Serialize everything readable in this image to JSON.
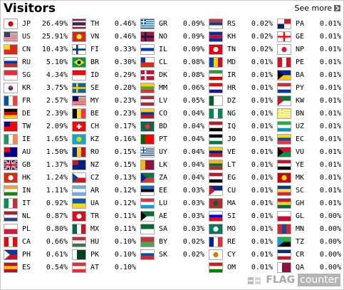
{
  "header": {
    "title": "Visitors",
    "see_more": "See more"
  },
  "footer": {
    "brand_flag": "FLAG",
    "brand_counter": "counter"
  },
  "columns": [
    [
      {
        "code": "JP",
        "pct": "26.49%",
        "colors": [
          "#ffffff",
          "#d00000"
        ],
        "style": "circle"
      },
      {
        "code": "US",
        "pct": "25.91%",
        "colors": [
          "#b22234",
          "#ffffff",
          "#3c3b6e"
        ],
        "style": "us"
      },
      {
        "code": "CN",
        "pct": "10.43%",
        "colors": [
          "#de2910",
          "#ffde00"
        ],
        "style": "canton"
      },
      {
        "code": "RU",
        "pct": "5.10%",
        "colors": [
          "#ffffff",
          "#0039a6",
          "#d52b1e"
        ],
        "style": "h3"
      },
      {
        "code": "SG",
        "pct": "4.34%",
        "colors": [
          "#ed2939",
          "#ffffff"
        ],
        "style": "h2"
      },
      {
        "code": "KR",
        "pct": "3.75%",
        "colors": [
          "#ffffff",
          "#cd2e3a",
          "#0047a0"
        ],
        "style": "circle2"
      },
      {
        "code": "FR",
        "pct": "2.57%",
        "colors": [
          "#0055a4",
          "#ffffff",
          "#ef4135"
        ],
        "style": "v3"
      },
      {
        "code": "DE",
        "pct": "2.39%",
        "colors": [
          "#000000",
          "#dd0000",
          "#ffce00"
        ],
        "style": "h3"
      },
      {
        "code": "TW",
        "pct": "2.09%",
        "colors": [
          "#fe0000",
          "#000095"
        ],
        "style": "canton"
      },
      {
        "code": "IE",
        "pct": "1.65%",
        "colors": [
          "#169b62",
          "#ffffff",
          "#ff883e"
        ],
        "style": "v3"
      },
      {
        "code": "AU",
        "pct": "1.50%",
        "colors": [
          "#00008b",
          "#ff0000"
        ],
        "style": "canton"
      },
      {
        "code": "GB",
        "pct": "1.37%",
        "colors": [
          "#012169",
          "#ffffff",
          "#c8102e"
        ],
        "style": "cross"
      },
      {
        "code": "HK",
        "pct": "1.24%",
        "colors": [
          "#de2910",
          "#ffffff"
        ],
        "style": "circle"
      },
      {
        "code": "IN",
        "pct": "1.11%",
        "colors": [
          "#ff9933",
          "#ffffff",
          "#138808"
        ],
        "style": "h3"
      },
      {
        "code": "IT",
        "pct": "0.92%",
        "colors": [
          "#009246",
          "#ffffff",
          "#ce2b37"
        ],
        "style": "v3"
      },
      {
        "code": "NL",
        "pct": "0.87%",
        "colors": [
          "#ae1c28",
          "#ffffff",
          "#21468b"
        ],
        "style": "h3"
      },
      {
        "code": "PL",
        "pct": "0.80%",
        "colors": [
          "#ffffff",
          "#dc143c"
        ],
        "style": "h2"
      },
      {
        "code": "CA",
        "pct": "0.66%",
        "colors": [
          "#ff0000",
          "#ffffff",
          "#ff0000"
        ],
        "style": "v3"
      },
      {
        "code": "PH",
        "pct": "0.61%",
        "colors": [
          "#0038a8",
          "#ce1126",
          "#ffffff"
        ],
        "style": "tri"
      },
      {
        "code": "ES",
        "pct": "0.54%",
        "colors": [
          "#c60b1e",
          "#ffc400",
          "#c60b1e"
        ],
        "style": "h3"
      }
    ],
    [
      {
        "code": "TH",
        "pct": "0.46%",
        "colors": [
          "#a51931",
          "#f4f5f8",
          "#2d2a4a",
          "#f4f5f8",
          "#a51931"
        ],
        "style": "h5"
      },
      {
        "code": "VN",
        "pct": "0.46%",
        "colors": [
          "#da251d",
          "#ffff00"
        ],
        "style": "circle"
      },
      {
        "code": "FI",
        "pct": "0.33%",
        "colors": [
          "#ffffff",
          "#003580"
        ],
        "style": "nordic"
      },
      {
        "code": "BR",
        "pct": "0.30%",
        "colors": [
          "#009c3b",
          "#ffdf00",
          "#002776"
        ],
        "style": "diamond"
      },
      {
        "code": "ID",
        "pct": "0.29%",
        "colors": [
          "#ff0000",
          "#ffffff"
        ],
        "style": "h2"
      },
      {
        "code": "SE",
        "pct": "0.28%",
        "colors": [
          "#006aa7",
          "#fecc00"
        ],
        "style": "nordic"
      },
      {
        "code": "MY",
        "pct": "0.23%",
        "colors": [
          "#cc0001",
          "#ffffff",
          "#010066"
        ],
        "style": "us"
      },
      {
        "code": "BE",
        "pct": "0.23%",
        "colors": [
          "#000000",
          "#fdda24",
          "#ef3340"
        ],
        "style": "v3"
      },
      {
        "code": "CH",
        "pct": "0.17%",
        "colors": [
          "#ff0000",
          "#ffffff"
        ],
        "style": "plus"
      },
      {
        "code": "KZ",
        "pct": "0.16%",
        "colors": [
          "#00afca",
          "#fec50c"
        ],
        "style": "circle"
      },
      {
        "code": "RO",
        "pct": "0.15%",
        "colors": [
          "#002b7f",
          "#fcd116",
          "#ce1126"
        ],
        "style": "v3"
      },
      {
        "code": "NZ",
        "pct": "0.15%",
        "colors": [
          "#00247d",
          "#cc142b"
        ],
        "style": "canton"
      },
      {
        "code": "CZ",
        "pct": "0.13%",
        "colors": [
          "#ffffff",
          "#d7141a",
          "#11457e"
        ],
        "style": "tri"
      },
      {
        "code": "AR",
        "pct": "0.12%",
        "colors": [
          "#74acdf",
          "#ffffff",
          "#74acdf"
        ],
        "style": "h3"
      },
      {
        "code": "UA",
        "pct": "0.12%",
        "colors": [
          "#0057b7",
          "#ffd700"
        ],
        "style": "h2"
      },
      {
        "code": "TR",
        "pct": "0.11%",
        "colors": [
          "#e30a17",
          "#ffffff"
        ],
        "style": "circle"
      },
      {
        "code": "MX",
        "pct": "0.11%",
        "colors": [
          "#006847",
          "#ffffff",
          "#ce1126"
        ],
        "style": "v3"
      },
      {
        "code": "HU",
        "pct": "0.10%",
        "colors": [
          "#ce2939",
          "#ffffff",
          "#477050"
        ],
        "style": "h3"
      },
      {
        "code": "PK",
        "pct": "0.10%",
        "colors": [
          "#ffffff",
          "#01411c"
        ],
        "style": "vsplit"
      },
      {
        "code": "AT",
        "pct": "0.10%",
        "colors": [
          "#ed2939",
          "#ffffff",
          "#ed2939"
        ],
        "style": "h3"
      }
    ],
    [
      {
        "code": "GR",
        "pct": "0.09%",
        "colors": [
          "#0d5eaf",
          "#ffffff"
        ],
        "style": "stripes"
      },
      {
        "code": "NO",
        "pct": "0.09%",
        "colors": [
          "#ba0c2f",
          "#00205b"
        ],
        "style": "nordic"
      },
      {
        "code": "IL",
        "pct": "0.09%",
        "colors": [
          "#ffffff",
          "#0038b8",
          "#ffffff"
        ],
        "style": "h3"
      },
      {
        "code": "CL",
        "pct": "0.08%",
        "colors": [
          "#ffffff",
          "#d52b1e",
          "#0039a6"
        ],
        "style": "chile"
      },
      {
        "code": "DK",
        "pct": "0.08%",
        "colors": [
          "#c8102e",
          "#ffffff"
        ],
        "style": "nordic"
      },
      {
        "code": "MM",
        "pct": "0.06%",
        "colors": [
          "#fecb00",
          "#34b233",
          "#ea2839"
        ],
        "style": "h3"
      },
      {
        "code": "LV",
        "pct": "0.05%",
        "colors": [
          "#9e3039",
          "#ffffff",
          "#9e3039"
        ],
        "style": "h3"
      },
      {
        "code": "CO",
        "pct": "0.04%",
        "colors": [
          "#fcd116",
          "#003893",
          "#ce1126"
        ],
        "style": "h3"
      },
      {
        "code": "BD",
        "pct": "0.04%",
        "colors": [
          "#006a4e",
          "#f42a41"
        ],
        "style": "circle"
      },
      {
        "code": "PT",
        "pct": "0.04%",
        "colors": [
          "#006600",
          "#ff0000"
        ],
        "style": "vsplit"
      },
      {
        "code": "UY",
        "pct": "0.04%",
        "colors": [
          "#ffffff",
          "#0038a8"
        ],
        "style": "stripes"
      },
      {
        "code": "LK",
        "pct": "0.04%",
        "colors": [
          "#ffb700",
          "#8d153a"
        ],
        "style": "vsplit"
      },
      {
        "code": "ZA",
        "pct": "0.04%",
        "colors": [
          "#007a4d",
          "#de3831",
          "#002395"
        ],
        "style": "tri"
      },
      {
        "code": "EE",
        "pct": "0.03%",
        "colors": [
          "#0072ce",
          "#000000",
          "#ffffff"
        ],
        "style": "h3"
      },
      {
        "code": "LU",
        "pct": "0.03%",
        "colors": [
          "#ed2939",
          "#ffffff",
          "#00a1de"
        ],
        "style": "h3"
      },
      {
        "code": "AE",
        "pct": "0.03%",
        "colors": [
          "#00732f",
          "#ffffff",
          "#000000"
        ],
        "style": "tri"
      },
      {
        "code": "SA",
        "pct": "0.03%",
        "colors": [
          "#006c35",
          "#ffffff"
        ],
        "style": "h2"
      },
      {
        "code": "BY",
        "pct": "0.02%",
        "colors": [
          "#c8313e",
          "#4aa657"
        ],
        "style": "h2"
      },
      {
        "code": "SK",
        "pct": "0.02%",
        "colors": [
          "#ffffff",
          "#0b4ea2",
          "#ee1c25"
        ],
        "style": "h3"
      }
    ],
    [
      {
        "code": "RS",
        "pct": "0.02%",
        "colors": [
          "#c6363c",
          "#0c4076",
          "#ffffff"
        ],
        "style": "h3"
      },
      {
        "code": "KH",
        "pct": "0.02%",
        "colors": [
          "#032ea1",
          "#e00025",
          "#032ea1"
        ],
        "style": "h3"
      },
      {
        "code": "TN",
        "pct": "0.02%",
        "colors": [
          "#e70013",
          "#ffffff"
        ],
        "style": "circle"
      },
      {
        "code": "MD",
        "pct": "0.01%",
        "colors": [
          "#0046ae",
          "#ffd200",
          "#cc092f"
        ],
        "style": "v3"
      },
      {
        "code": "IR",
        "pct": "0.01%",
        "colors": [
          "#239f40",
          "#ffffff",
          "#da0000"
        ],
        "style": "h3"
      },
      {
        "code": "HR",
        "pct": "0.01%",
        "colors": [
          "#ff0000",
          "#ffffff",
          "#171796"
        ],
        "style": "h3"
      },
      {
        "code": "DZ",
        "pct": "0.01%",
        "colors": [
          "#006233",
          "#ffffff"
        ],
        "style": "vsplit"
      },
      {
        "code": "NG",
        "pct": "0.01%",
        "colors": [
          "#008751",
          "#ffffff",
          "#008751"
        ],
        "style": "v3"
      },
      {
        "code": "IQ",
        "pct": "0.01%",
        "colors": [
          "#ce1126",
          "#ffffff",
          "#000000"
        ],
        "style": "h3"
      },
      {
        "code": "JO",
        "pct": "0.01%",
        "colors": [
          "#000000",
          "#ffffff",
          "#007a3d"
        ],
        "style": "h3"
      },
      {
        "code": "VE",
        "pct": "0.01%",
        "colors": [
          "#ffcc00",
          "#00247d",
          "#cf142b"
        ],
        "style": "h3"
      },
      {
        "code": "LT",
        "pct": "0.01%",
        "colors": [
          "#fdb913",
          "#006a44",
          "#c1272d"
        ],
        "style": "h3"
      },
      {
        "code": "EG",
        "pct": "0.01%",
        "colors": [
          "#ce1126",
          "#ffffff",
          "#000000"
        ],
        "style": "h3"
      },
      {
        "code": "CU",
        "pct": "0.01%",
        "colors": [
          "#002a8f",
          "#ffffff",
          "#cf142b"
        ],
        "style": "tri"
      },
      {
        "code": "MA",
        "pct": "0.01%",
        "colors": [
          "#c1272d",
          "#006233"
        ],
        "style": "circle"
      },
      {
        "code": "SI",
        "pct": "0.01%",
        "colors": [
          "#ffffff",
          "#0000ff",
          "#ff0000"
        ],
        "style": "h3"
      },
      {
        "code": "MO",
        "pct": "0.01%",
        "colors": [
          "#00785e",
          "#ffffff"
        ],
        "style": "circle"
      },
      {
        "code": "RE",
        "pct": "0.01%",
        "colors": [
          "#002395",
          "#ffffff",
          "#ed2939"
        ],
        "style": "v3"
      },
      {
        "code": "CY",
        "pct": "0.01%",
        "colors": [
          "#ffffff",
          "#d57800"
        ],
        "style": "circle"
      },
      {
        "code": "OM",
        "pct": "0.01%",
        "colors": [
          "#db161b",
          "#ffffff",
          "#008000"
        ],
        "style": "h3"
      }
    ],
    [
      {
        "code": "PA",
        "pct": "0.01%",
        "colors": [
          "#ffffff",
          "#da121a",
          "#072357"
        ],
        "style": "quad"
      },
      {
        "code": "GE",
        "pct": "0.01%",
        "colors": [
          "#ffffff",
          "#ff0000"
        ],
        "style": "plus2"
      },
      {
        "code": "NP",
        "pct": "0.01%",
        "colors": [
          "#ffffff",
          "#dc143c"
        ],
        "style": "circle"
      },
      {
        "code": "PE",
        "pct": "0.01%",
        "colors": [
          "#d91023",
          "#ffffff",
          "#d91023"
        ],
        "style": "v3"
      },
      {
        "code": "BA",
        "pct": "0.01%",
        "colors": [
          "#002395",
          "#fecb00"
        ],
        "style": "tri"
      },
      {
        "code": "PY",
        "pct": "0.01%",
        "colors": [
          "#d52b1e",
          "#ffffff",
          "#0038a8"
        ],
        "style": "h3"
      },
      {
        "code": "KW",
        "pct": "0.01%",
        "colors": [
          "#007a3d",
          "#ffffff",
          "#ce1126"
        ],
        "style": "tri"
      },
      {
        "code": "BN",
        "pct": "0.01%",
        "colors": [
          "#f7e017",
          "#ffffff",
          "#000000"
        ],
        "style": "stripes"
      },
      {
        "code": "UZ",
        "pct": "0.01%",
        "colors": [
          "#1eb53a",
          "#ffffff",
          "#0099b5"
        ],
        "style": "h3"
      },
      {
        "code": "EC",
        "pct": "0.01%",
        "colors": [
          "#ffd100",
          "#034ea2",
          "#ef3340"
        ],
        "style": "h3"
      },
      {
        "code": "VU",
        "pct": "0.01%",
        "colors": [
          "#d21034",
          "#009543",
          "#000000"
        ],
        "style": "tri"
      },
      {
        "code": "YE",
        "pct": "0.01%",
        "colors": [
          "#ce1126",
          "#ffffff",
          "#000000"
        ],
        "style": "h3"
      },
      {
        "code": "MK",
        "pct": "0.01%",
        "colors": [
          "#d20000",
          "#ffe600"
        ],
        "style": "circle"
      },
      {
        "code": "SC",
        "pct": "0.01%",
        "colors": [
          "#003f87",
          "#fcd856",
          "#d62828"
        ],
        "style": "h3"
      },
      {
        "code": "GH",
        "pct": "0.01%",
        "colors": [
          "#ce1126",
          "#fcd116",
          "#006b3f"
        ],
        "style": "h3"
      },
      {
        "code": "GL",
        "pct": "0.00%",
        "colors": [
          "#ffffff",
          "#d00c33"
        ],
        "style": "h2"
      },
      {
        "code": "MN",
        "pct": "0.00%",
        "colors": [
          "#da2032",
          "#015197",
          "#da2032"
        ],
        "style": "v3"
      },
      {
        "code": "TZ",
        "pct": "0.00%",
        "colors": [
          "#1eb53a",
          "#000000",
          "#00a3dd"
        ],
        "style": "tri"
      },
      {
        "code": "CR",
        "pct": "0.00%",
        "colors": [
          "#002b7f",
          "#ffffff",
          "#ce1126"
        ],
        "style": "h3"
      },
      {
        "code": "QA",
        "pct": "0.00%",
        "colors": [
          "#ffffff",
          "#8a1538"
        ],
        "style": "vsplit"
      }
    ]
  ]
}
